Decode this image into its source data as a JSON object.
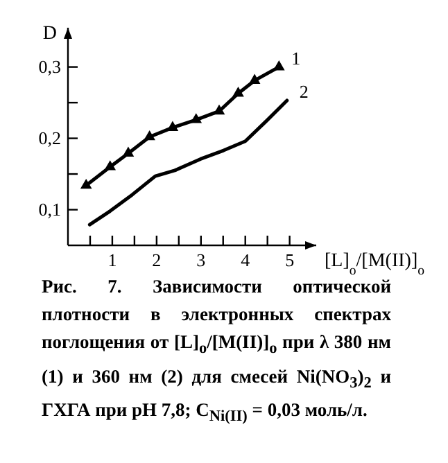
{
  "chart_data": {
    "type": "line",
    "ylabel": "D",
    "xlabel": "[L]$_{o}$/[M(II)]$_{o}$",
    "xlim": [
      0,
      5.6
    ],
    "ylim": [
      0.05,
      0.355
    ],
    "xticks": [
      {
        "value": 0.5,
        "label": null
      },
      1,
      {
        "value": 1.5,
        "label": null
      },
      2,
      {
        "value": 2.5,
        "label": null
      },
      3,
      {
        "value": 3.5,
        "label": null
      },
      4,
      {
        "value": 4.5,
        "label": null
      },
      5
    ],
    "yticks": [
      {
        "value": 0.1,
        "label": "0,1"
      },
      {
        "value": 0.15,
        "label": null
      },
      {
        "value": 0.2,
        "label": "0,2"
      },
      {
        "value": 0.25,
        "label": null
      },
      {
        "value": 0.3,
        "label": "0,3"
      }
    ],
    "grid": false,
    "legend": false,
    "line_style": "solid",
    "series": [
      {
        "name": "1",
        "color": "#000000",
        "marker": "triangle",
        "x": [
          0.41,
          0.95,
          1.36,
          1.84,
          2.36,
          2.89,
          3.41,
          3.84,
          4.21,
          4.76
        ],
        "values": [
          0.134,
          0.16,
          0.179,
          0.202,
          0.215,
          0.226,
          0.238,
          0.263,
          0.281,
          0.3
        ]
      },
      {
        "name": "2",
        "color": "#000000",
        "marker": "none",
        "x": [
          0.49,
          0.95,
          1.45,
          1.97,
          2.41,
          2.99,
          3.51,
          4.0,
          4.47,
          4.94
        ],
        "values": [
          0.079,
          0.098,
          0.121,
          0.147,
          0.155,
          0.171,
          0.183,
          0.196,
          0.224,
          0.253
        ]
      }
    ],
    "annotations": [
      "Рис. 7. Зависимости оптической плотности в электронных спектрах поглощения от [L]$_{o}$/[M(II)]$_{o}$ при λ 380 нм (1) и 360 нм (2) для смесей Ni(NO$_{3}$)$_{2}$ и ГХГА при pH 7,8; C$_{Ni(II)}$ = 0,03 моль/л."
    ]
  }
}
